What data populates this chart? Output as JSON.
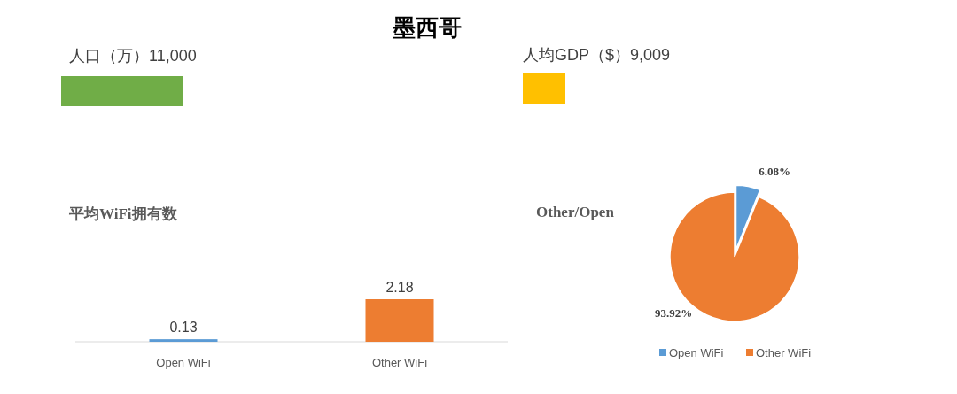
{
  "chart_data": [
    {
      "type": "other",
      "title": "墨西哥"
    },
    {
      "type": "other",
      "title": "人口（万）11,000",
      "color": "#70ad47"
    },
    {
      "type": "other",
      "title": "人均GDP（$）9,009",
      "color": "#ffc000"
    },
    {
      "type": "bar",
      "title": "平均WiFi拥有数",
      "categories": [
        "Open WiFi",
        "Other WiFi"
      ],
      "values": [
        0.13,
        2.18
      ],
      "colors": [
        "#5b9bd5",
        "#ed7d31"
      ],
      "data_labels": true
    },
    {
      "type": "pie",
      "title": "Other/Open",
      "categories": [
        "Open WiFi",
        "Other WiFi"
      ],
      "values": [
        6.08,
        93.92
      ],
      "colors": [
        "#5b9bd5",
        "#ed7d31"
      ],
      "value_labels": [
        "6.08%",
        "93.92%"
      ],
      "legend": "bottom"
    }
  ]
}
